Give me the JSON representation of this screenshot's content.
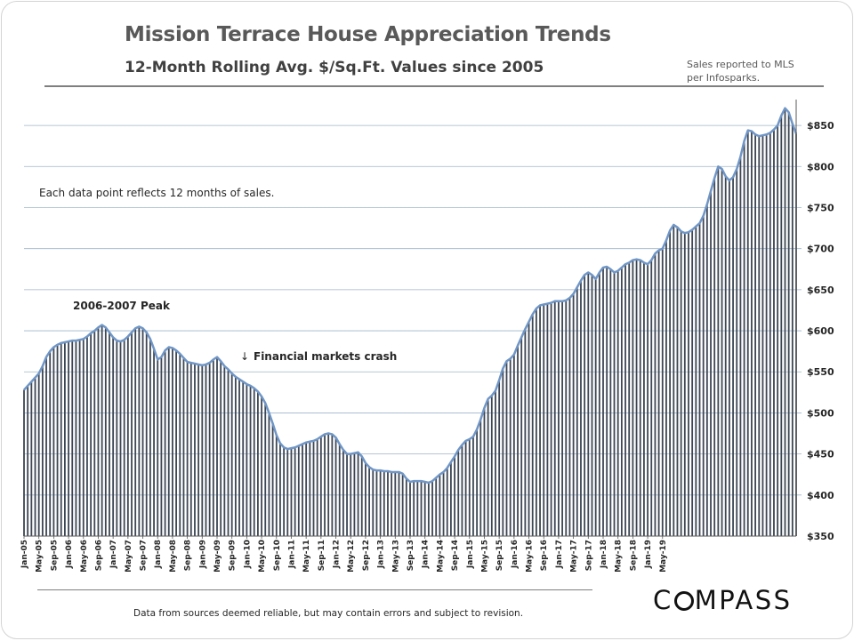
{
  "header": {
    "title": "Mission Terrace House Appreciation Trends",
    "subtitle": "12-Month Rolling Avg. $/Sq.Ft. Values since 2005",
    "source_note": [
      "Sales reported to MLS",
      "per Infosparks."
    ]
  },
  "footer": {
    "disclaimer": "Data from sources deemed reliable, but may contain errors and subject to revision.",
    "logo": {
      "before": "C",
      "after": "MPASS"
    }
  },
  "chart_data": {
    "type": "bar",
    "ylim": [
      350,
      875
    ],
    "yticks": [
      350,
      400,
      450,
      500,
      550,
      600,
      650,
      700,
      750,
      800,
      850
    ],
    "ytick_labels": [
      "$350",
      "$400",
      "$450",
      "$500",
      "$550",
      "$600",
      "$650",
      "$700",
      "$750",
      "$800",
      "$850"
    ],
    "xtick_labels": [
      "Jan-05",
      "May-05",
      "Sep-05",
      "Jan-06",
      "May-06",
      "Sep-06",
      "Jan-07",
      "May-07",
      "Sep-07",
      "Jan-08",
      "May-08",
      "Sep-08",
      "Jan-09",
      "May-09",
      "Sep-09",
      "Jan-10",
      "May-10",
      "Sep-10",
      "Jan-11",
      "May-11",
      "Sep-11",
      "Jan-12",
      "May-12",
      "Sep-12",
      "Jan-13",
      "May-13",
      "Sep-13",
      "Jan-14",
      "May-14",
      "Sep-14",
      "Jan-15",
      "May-15",
      "Sep-15",
      "Jan-16",
      "May-16",
      "Sep-16",
      "Jan-17",
      "May-17",
      "Sep-17",
      "Jan-18",
      "May-18",
      "Sep-18",
      "Jan-19",
      "May-19"
    ],
    "grid": true,
    "line_overlay": true,
    "bar_color": "#3d4654",
    "line_color": "#7096c6",
    "grid_color": "#9fb4c8",
    "annotations": [
      "Each data point reflects 12 months of sales.",
      "2006-2007  Peak",
      "Financial markets crash"
    ],
    "series": [
      {
        "values": [
          528,
          533,
          538,
          543,
          548,
          557,
          568,
          575,
          580,
          583,
          585,
          586,
          587,
          588,
          588,
          589,
          590,
          593,
          597,
          600,
          604,
          607,
          604,
          598,
          592,
          588,
          587,
          589,
          593,
          598,
          603,
          605,
          603,
          598,
          590,
          578,
          565,
          568,
          576,
          580,
          579,
          576,
          572,
          567,
          562,
          561,
          560,
          559,
          558,
          559,
          561,
          565,
          568,
          563,
          557,
          553,
          548,
          544,
          541,
          538,
          535,
          533,
          530,
          526,
          520,
          512,
          500,
          487,
          473,
          463,
          458,
          456,
          457,
          458,
          460,
          462,
          464,
          465,
          466,
          468,
          471,
          474,
          475,
          474,
          470,
          462,
          455,
          450,
          450,
          451,
          452,
          447,
          439,
          434,
          431,
          430,
          430,
          429,
          429,
          428,
          428,
          428,
          426,
          420,
          416,
          417,
          417,
          417,
          416,
          415,
          417,
          421,
          425,
          428,
          433,
          440,
          447,
          455,
          461,
          466,
          468,
          471,
          480,
          492,
          506,
          517,
          521,
          527,
          540,
          554,
          563,
          566,
          571,
          582,
          592,
          602,
          611,
          620,
          627,
          631,
          632,
          633,
          634,
          636,
          636,
          636,
          637,
          640,
          645,
          653,
          661,
          668,
          671,
          668,
          663,
          671,
          677,
          678,
          675,
          671,
          673,
          677,
          681,
          683,
          686,
          687,
          686,
          683,
          681,
          686,
          694,
          698,
          700,
          710,
          722,
          729,
          726,
          721,
          719,
          720,
          723,
          727,
          731,
          740,
          754,
          770,
          786,
          800,
          797,
          788,
          783,
          787,
          797,
          812,
          831,
          844,
          843,
          839,
          837,
          838,
          839,
          841,
          845,
          850,
          862,
          871,
          866,
          852,
          840
        ]
      }
    ]
  }
}
